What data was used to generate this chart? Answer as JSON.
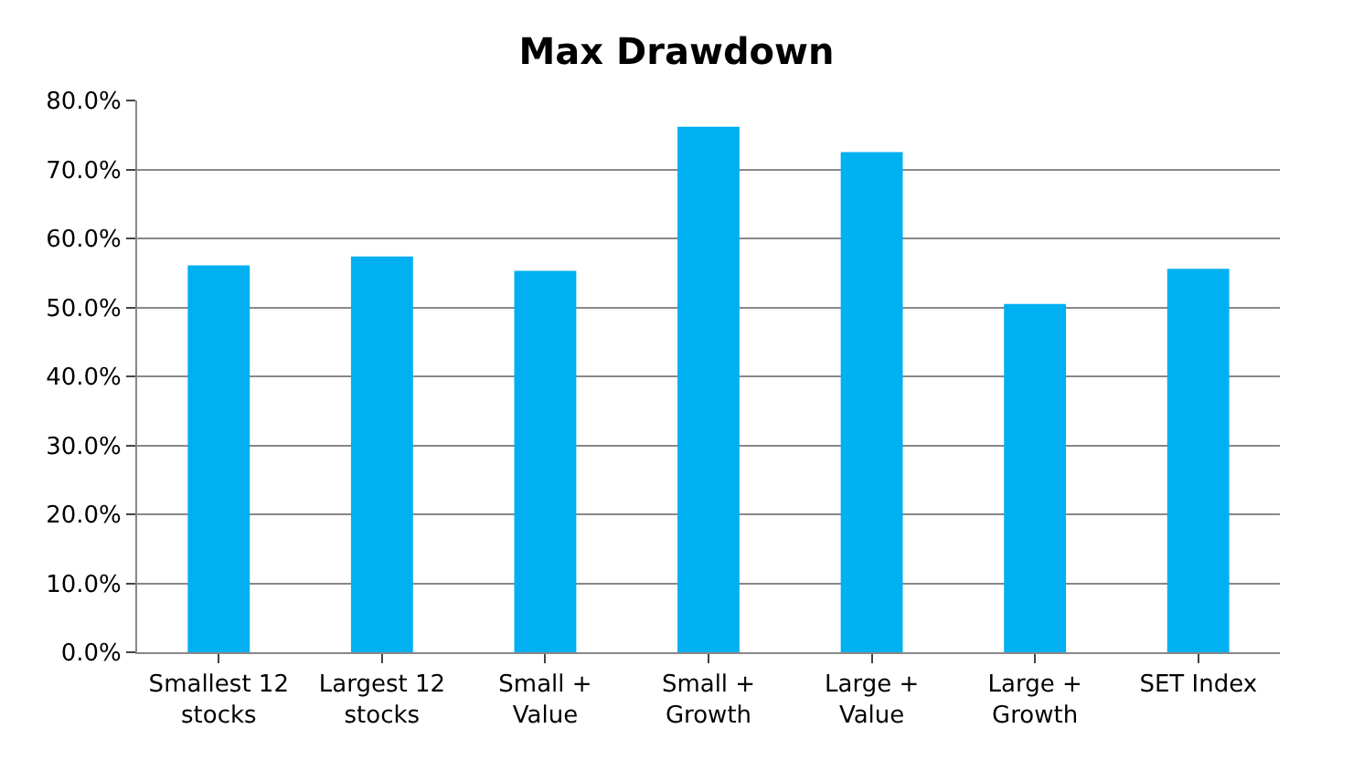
{
  "chart_data": {
    "type": "bar",
    "title": "Max Drawdown",
    "categories": [
      "Smallest 12\nstocks",
      "Largest 12\nstocks",
      "Small +\nValue",
      "Small +\nGrowth",
      "Large +\nValue",
      "Large +\nGrowth",
      "SET Index"
    ],
    "values": [
      56.1,
      57.4,
      55.3,
      76.2,
      72.5,
      50.5,
      55.6
    ],
    "color": "#00b0f0",
    "ylim": [
      0,
      80
    ],
    "yticks": [
      {
        "value": 0,
        "label": "0.0%"
      },
      {
        "value": 10,
        "label": "10.0%"
      },
      {
        "value": 20,
        "label": "20.0%"
      },
      {
        "value": 30,
        "label": "30.0%"
      },
      {
        "value": 40,
        "label": "40.0%"
      },
      {
        "value": 50,
        "label": "50.0%"
      },
      {
        "value": 60,
        "label": "60.0%"
      },
      {
        "value": 70,
        "label": "70.0%"
      },
      {
        "value": 80,
        "label": "80.0%"
      }
    ],
    "grid": "y"
  }
}
